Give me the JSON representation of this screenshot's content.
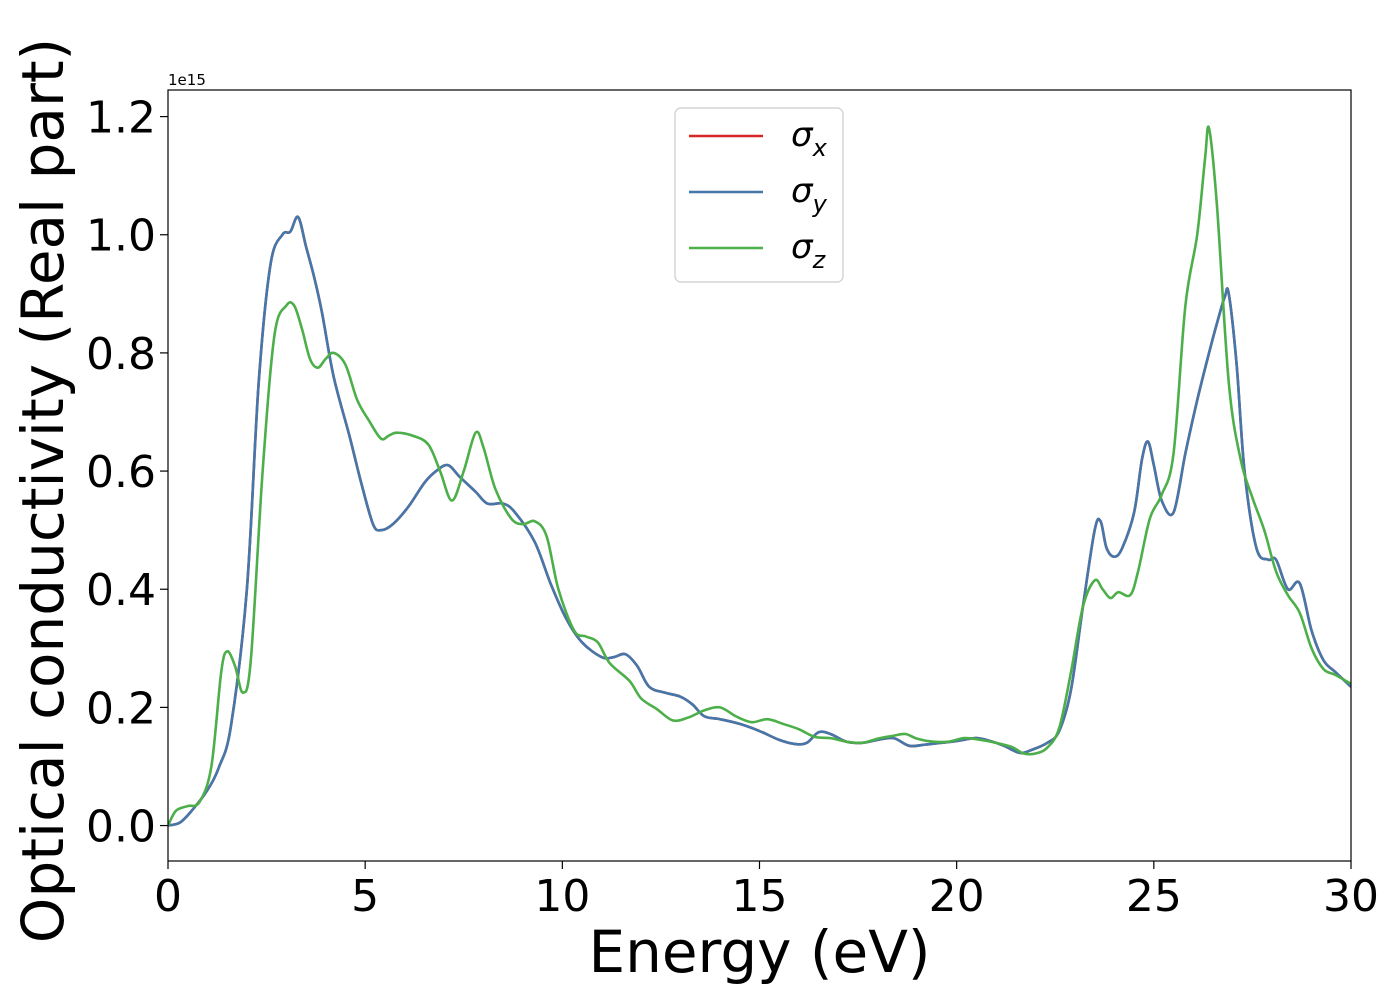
{
  "chart_data": {
    "type": "line",
    "title": "",
    "xlabel": "Energy (eV)",
    "ylabel": "Optical conductivity (Real part)",
    "y_offset_label": "1e15",
    "xlim": [
      0,
      30
    ],
    "ylim": [
      -0.06,
      1.245
    ],
    "xticks": [
      0,
      5,
      10,
      15,
      20,
      25,
      30
    ],
    "yticks": [
      0.0,
      0.2,
      0.4,
      0.6,
      0.8,
      1.0,
      1.2
    ],
    "xtick_labels": [
      "0",
      "5",
      "10",
      "15",
      "20",
      "25",
      "30"
    ],
    "ytick_labels": [
      "0.0",
      "0.2",
      "0.4",
      "0.6",
      "0.8",
      "1.0",
      "1.2"
    ],
    "grid": false,
    "legend_position": "top-center",
    "legend": [
      {
        "base": "σ",
        "sub": "x",
        "color": "#d62728"
      },
      {
        "base": "σ",
        "sub": "y",
        "color": "#4477aa"
      },
      {
        "base": "σ",
        "sub": "z",
        "color": "#4daf4a"
      }
    ],
    "series": [
      {
        "name": "σx",
        "color": "#d62728",
        "points": [
          [
            0,
            0
          ],
          [
            0.3,
            0.005
          ],
          [
            0.6,
            0.025
          ],
          [
            1.0,
            0.06
          ],
          [
            1.3,
            0.1
          ],
          [
            1.6,
            0.17
          ],
          [
            2.0,
            0.4
          ],
          [
            2.3,
            0.75
          ],
          [
            2.6,
            0.95
          ],
          [
            2.9,
            1.0
          ],
          [
            3.1,
            1.005
          ],
          [
            3.3,
            1.03
          ],
          [
            3.5,
            0.98
          ],
          [
            3.7,
            0.93
          ],
          [
            3.9,
            0.87
          ],
          [
            4.2,
            0.76
          ],
          [
            4.6,
            0.66
          ],
          [
            4.9,
            0.58
          ],
          [
            5.2,
            0.51
          ],
          [
            5.4,
            0.5
          ],
          [
            5.7,
            0.51
          ],
          [
            6.1,
            0.54
          ],
          [
            6.5,
            0.58
          ],
          [
            6.8,
            0.6
          ],
          [
            7.1,
            0.61
          ],
          [
            7.4,
            0.59
          ],
          [
            7.8,
            0.565
          ],
          [
            8.1,
            0.545
          ],
          [
            8.5,
            0.545
          ],
          [
            8.8,
            0.53
          ],
          [
            9.3,
            0.48
          ],
          [
            9.7,
            0.41
          ],
          [
            10.1,
            0.35
          ],
          [
            10.5,
            0.31
          ],
          [
            11.0,
            0.285
          ],
          [
            11.3,
            0.285
          ],
          [
            11.6,
            0.29
          ],
          [
            11.9,
            0.27
          ],
          [
            12.2,
            0.235
          ],
          [
            12.6,
            0.225
          ],
          [
            13.0,
            0.218
          ],
          [
            13.3,
            0.205
          ],
          [
            13.6,
            0.185
          ],
          [
            14.0,
            0.18
          ],
          [
            14.5,
            0.172
          ],
          [
            15.0,
            0.16
          ],
          [
            15.5,
            0.145
          ],
          [
            15.9,
            0.138
          ],
          [
            16.2,
            0.14
          ],
          [
            16.5,
            0.158
          ],
          [
            16.8,
            0.155
          ],
          [
            17.2,
            0.142
          ],
          [
            17.6,
            0.14
          ],
          [
            18.0,
            0.145
          ],
          [
            18.4,
            0.148
          ],
          [
            18.8,
            0.135
          ],
          [
            19.2,
            0.137
          ],
          [
            19.6,
            0.14
          ],
          [
            20.0,
            0.143
          ],
          [
            20.5,
            0.148
          ],
          [
            20.9,
            0.142
          ],
          [
            21.2,
            0.135
          ],
          [
            21.6,
            0.123
          ],
          [
            21.9,
            0.128
          ],
          [
            22.3,
            0.14
          ],
          [
            22.6,
            0.16
          ],
          [
            22.9,
            0.23
          ],
          [
            23.2,
            0.37
          ],
          [
            23.5,
            0.5
          ],
          [
            23.65,
            0.515
          ],
          [
            23.8,
            0.47
          ],
          [
            24.0,
            0.455
          ],
          [
            24.2,
            0.47
          ],
          [
            24.5,
            0.53
          ],
          [
            24.7,
            0.62
          ],
          [
            24.85,
            0.65
          ],
          [
            25.0,
            0.61
          ],
          [
            25.2,
            0.55
          ],
          [
            25.5,
            0.53
          ],
          [
            25.8,
            0.63
          ],
          [
            26.1,
            0.72
          ],
          [
            26.4,
            0.8
          ],
          [
            26.6,
            0.85
          ],
          [
            26.8,
            0.895
          ],
          [
            26.9,
            0.9
          ],
          [
            27.1,
            0.78
          ],
          [
            27.3,
            0.6
          ],
          [
            27.6,
            0.47
          ],
          [
            27.9,
            0.45
          ],
          [
            28.1,
            0.45
          ],
          [
            28.4,
            0.4
          ],
          [
            28.7,
            0.41
          ],
          [
            29.0,
            0.33
          ],
          [
            29.3,
            0.28
          ],
          [
            29.6,
            0.26
          ],
          [
            30.0,
            0.235
          ]
        ]
      },
      {
        "name": "σy",
        "color": "#4477aa",
        "points": [
          [
            0,
            0
          ],
          [
            0.3,
            0.005
          ],
          [
            0.6,
            0.025
          ],
          [
            1.0,
            0.06
          ],
          [
            1.3,
            0.1
          ],
          [
            1.6,
            0.17
          ],
          [
            2.0,
            0.4
          ],
          [
            2.3,
            0.75
          ],
          [
            2.6,
            0.95
          ],
          [
            2.9,
            1.0
          ],
          [
            3.1,
            1.005
          ],
          [
            3.3,
            1.03
          ],
          [
            3.5,
            0.98
          ],
          [
            3.7,
            0.93
          ],
          [
            3.9,
            0.87
          ],
          [
            4.2,
            0.76
          ],
          [
            4.6,
            0.66
          ],
          [
            4.9,
            0.58
          ],
          [
            5.2,
            0.51
          ],
          [
            5.4,
            0.5
          ],
          [
            5.7,
            0.51
          ],
          [
            6.1,
            0.54
          ],
          [
            6.5,
            0.58
          ],
          [
            6.8,
            0.6
          ],
          [
            7.1,
            0.61
          ],
          [
            7.4,
            0.59
          ],
          [
            7.8,
            0.565
          ],
          [
            8.1,
            0.545
          ],
          [
            8.5,
            0.545
          ],
          [
            8.8,
            0.53
          ],
          [
            9.3,
            0.48
          ],
          [
            9.7,
            0.41
          ],
          [
            10.1,
            0.35
          ],
          [
            10.5,
            0.31
          ],
          [
            11.0,
            0.285
          ],
          [
            11.3,
            0.285
          ],
          [
            11.6,
            0.29
          ],
          [
            11.9,
            0.27
          ],
          [
            12.2,
            0.235
          ],
          [
            12.6,
            0.225
          ],
          [
            13.0,
            0.218
          ],
          [
            13.3,
            0.205
          ],
          [
            13.6,
            0.185
          ],
          [
            14.0,
            0.18
          ],
          [
            14.5,
            0.172
          ],
          [
            15.0,
            0.16
          ],
          [
            15.5,
            0.145
          ],
          [
            15.9,
            0.138
          ],
          [
            16.2,
            0.14
          ],
          [
            16.5,
            0.158
          ],
          [
            16.8,
            0.155
          ],
          [
            17.2,
            0.142
          ],
          [
            17.6,
            0.14
          ],
          [
            18.0,
            0.145
          ],
          [
            18.4,
            0.148
          ],
          [
            18.8,
            0.135
          ],
          [
            19.2,
            0.137
          ],
          [
            19.6,
            0.14
          ],
          [
            20.0,
            0.143
          ],
          [
            20.5,
            0.148
          ],
          [
            20.9,
            0.142
          ],
          [
            21.2,
            0.135
          ],
          [
            21.6,
            0.123
          ],
          [
            21.9,
            0.128
          ],
          [
            22.3,
            0.14
          ],
          [
            22.6,
            0.16
          ],
          [
            22.9,
            0.23
          ],
          [
            23.2,
            0.37
          ],
          [
            23.5,
            0.5
          ],
          [
            23.65,
            0.515
          ],
          [
            23.8,
            0.47
          ],
          [
            24.0,
            0.455
          ],
          [
            24.2,
            0.47
          ],
          [
            24.5,
            0.53
          ],
          [
            24.7,
            0.62
          ],
          [
            24.85,
            0.65
          ],
          [
            25.0,
            0.61
          ],
          [
            25.2,
            0.55
          ],
          [
            25.5,
            0.53
          ],
          [
            25.8,
            0.63
          ],
          [
            26.1,
            0.72
          ],
          [
            26.4,
            0.8
          ],
          [
            26.6,
            0.85
          ],
          [
            26.8,
            0.895
          ],
          [
            26.9,
            0.9
          ],
          [
            27.1,
            0.78
          ],
          [
            27.3,
            0.6
          ],
          [
            27.6,
            0.47
          ],
          [
            27.9,
            0.45
          ],
          [
            28.1,
            0.45
          ],
          [
            28.4,
            0.4
          ],
          [
            28.7,
            0.41
          ],
          [
            29.0,
            0.33
          ],
          [
            29.3,
            0.28
          ],
          [
            29.6,
            0.26
          ],
          [
            30.0,
            0.235
          ]
        ]
      },
      {
        "name": "σz",
        "color": "#4daf4a",
        "points": [
          [
            0,
            0
          ],
          [
            0.2,
            0.025
          ],
          [
            0.5,
            0.033
          ],
          [
            0.8,
            0.04
          ],
          [
            1.1,
            0.1
          ],
          [
            1.35,
            0.26
          ],
          [
            1.5,
            0.295
          ],
          [
            1.7,
            0.27
          ],
          [
            1.9,
            0.225
          ],
          [
            2.1,
            0.28
          ],
          [
            2.4,
            0.6
          ],
          [
            2.7,
            0.83
          ],
          [
            3.0,
            0.88
          ],
          [
            3.2,
            0.88
          ],
          [
            3.4,
            0.84
          ],
          [
            3.6,
            0.79
          ],
          [
            3.8,
            0.775
          ],
          [
            4.0,
            0.79
          ],
          [
            4.2,
            0.8
          ],
          [
            4.5,
            0.78
          ],
          [
            4.8,
            0.72
          ],
          [
            5.1,
            0.685
          ],
          [
            5.4,
            0.655
          ],
          [
            5.6,
            0.66
          ],
          [
            5.8,
            0.665
          ],
          [
            6.2,
            0.66
          ],
          [
            6.6,
            0.645
          ],
          [
            6.9,
            0.6
          ],
          [
            7.2,
            0.55
          ],
          [
            7.5,
            0.6
          ],
          [
            7.8,
            0.665
          ],
          [
            8.0,
            0.64
          ],
          [
            8.3,
            0.57
          ],
          [
            8.7,
            0.52
          ],
          [
            9.0,
            0.51
          ],
          [
            9.3,
            0.515
          ],
          [
            9.6,
            0.49
          ],
          [
            9.9,
            0.4
          ],
          [
            10.3,
            0.33
          ],
          [
            10.6,
            0.32
          ],
          [
            10.9,
            0.31
          ],
          [
            11.2,
            0.275
          ],
          [
            11.7,
            0.245
          ],
          [
            12.0,
            0.215
          ],
          [
            12.4,
            0.197
          ],
          [
            12.8,
            0.178
          ],
          [
            13.2,
            0.183
          ],
          [
            13.6,
            0.195
          ],
          [
            14.0,
            0.2
          ],
          [
            14.4,
            0.185
          ],
          [
            14.8,
            0.175
          ],
          [
            15.2,
            0.18
          ],
          [
            15.6,
            0.172
          ],
          [
            16.0,
            0.163
          ],
          [
            16.4,
            0.15
          ],
          [
            16.8,
            0.148
          ],
          [
            17.2,
            0.142
          ],
          [
            17.6,
            0.14
          ],
          [
            18.0,
            0.147
          ],
          [
            18.4,
            0.152
          ],
          [
            18.7,
            0.155
          ],
          [
            19.0,
            0.147
          ],
          [
            19.4,
            0.142
          ],
          [
            19.8,
            0.142
          ],
          [
            20.2,
            0.148
          ],
          [
            20.6,
            0.145
          ],
          [
            21.0,
            0.14
          ],
          [
            21.4,
            0.133
          ],
          [
            21.7,
            0.122
          ],
          [
            22.0,
            0.122
          ],
          [
            22.3,
            0.132
          ],
          [
            22.6,
            0.165
          ],
          [
            22.9,
            0.26
          ],
          [
            23.2,
            0.37
          ],
          [
            23.5,
            0.415
          ],
          [
            23.7,
            0.4
          ],
          [
            23.9,
            0.385
          ],
          [
            24.1,
            0.395
          ],
          [
            24.4,
            0.39
          ],
          [
            24.6,
            0.43
          ],
          [
            24.9,
            0.52
          ],
          [
            25.2,
            0.56
          ],
          [
            25.5,
            0.63
          ],
          [
            25.8,
            0.88
          ],
          [
            26.1,
            1.0
          ],
          [
            26.3,
            1.13
          ],
          [
            26.4,
            1.18
          ],
          [
            26.6,
            1.05
          ],
          [
            26.9,
            0.75
          ],
          [
            27.2,
            0.62
          ],
          [
            27.5,
            0.555
          ],
          [
            27.8,
            0.5
          ],
          [
            28.1,
            0.43
          ],
          [
            28.4,
            0.39
          ],
          [
            28.7,
            0.36
          ],
          [
            29.0,
            0.3
          ],
          [
            29.3,
            0.265
          ],
          [
            29.6,
            0.255
          ],
          [
            30.0,
            0.24
          ]
        ]
      }
    ]
  }
}
